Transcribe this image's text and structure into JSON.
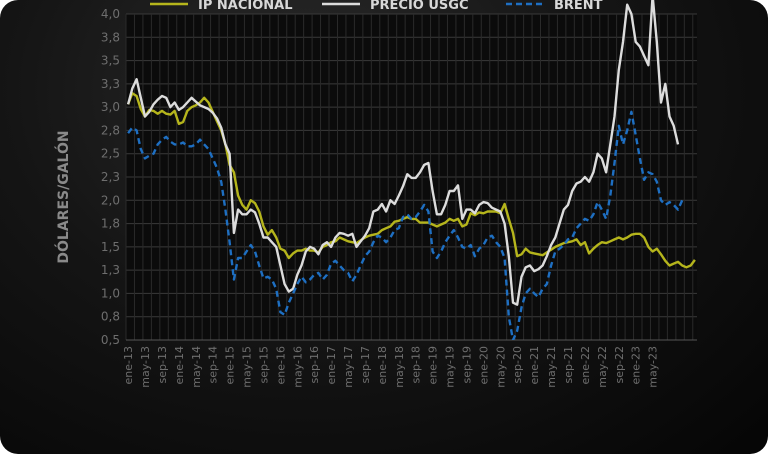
{
  "chart_data": {
    "type": "line",
    "ylabel": "DÓLARES/GALÓN",
    "xlabel": "",
    "ylim": [
      0.5,
      4.0
    ],
    "y_ticks": [
      "0,5",
      "0,8",
      "1,0",
      "1,3",
      "1,5",
      "1,8",
      "2,0",
      "2,3",
      "2,5",
      "2,8",
      "3,0",
      "3,3",
      "3,5",
      "3,8",
      "4,0"
    ],
    "x_ticks": [
      "ene-13",
      "may-13",
      "sep-13",
      "ene-14",
      "may-14",
      "sep-14",
      "ene-15",
      "may-15",
      "sep-15",
      "ene-16",
      "may-16",
      "sep-16",
      "ene-17",
      "may-17",
      "sep-17",
      "ene-18",
      "may-18",
      "sep-18",
      "ene-19",
      "may-19",
      "sep-19",
      "ene-20",
      "may-20",
      "sep-20",
      "ene-21",
      "may-21",
      "sep-21",
      "ene-22",
      "may-22",
      "sep-22",
      "ene-23",
      "may-23"
    ],
    "grid": true,
    "legend_position": "top",
    "series": [
      {
        "name": "IP NACIONAL",
        "color": "#b5b51c",
        "style": "solid",
        "values": [
          3.03,
          3.15,
          3.12,
          2.98,
          2.9,
          2.97,
          2.96,
          2.93,
          2.96,
          2.93,
          2.92,
          2.96,
          2.82,
          2.84,
          2.96,
          3.0,
          3.02,
          3.05,
          3.1,
          3.05,
          2.95,
          2.85,
          2.75,
          2.6,
          2.38,
          2.3,
          2.05,
          1.95,
          1.9,
          2.0,
          1.97,
          1.88,
          1.72,
          1.63,
          1.68,
          1.6,
          1.48,
          1.46,
          1.38,
          1.43,
          1.46,
          1.46,
          1.48,
          1.46,
          1.46,
          1.44,
          1.5,
          1.52,
          1.55,
          1.56,
          1.6,
          1.58,
          1.56,
          1.55,
          1.54,
          1.57,
          1.6,
          1.62,
          1.63,
          1.64,
          1.68,
          1.7,
          1.72,
          1.77,
          1.78,
          1.8,
          1.82,
          1.8,
          1.8,
          1.76,
          1.76,
          1.76,
          1.74,
          1.72,
          1.74,
          1.76,
          1.8,
          1.78,
          1.8,
          1.72,
          1.74,
          1.86,
          1.84,
          1.87,
          1.86,
          1.88,
          1.88,
          1.88,
          1.86,
          1.96,
          1.8,
          1.65,
          1.4,
          1.42,
          1.48,
          1.44,
          1.43,
          1.42,
          1.41,
          1.44,
          1.47,
          1.5,
          1.52,
          1.54,
          1.55,
          1.56,
          1.58,
          1.52,
          1.55,
          1.43,
          1.48,
          1.52,
          1.55,
          1.54,
          1.56,
          1.58,
          1.6,
          1.58,
          1.6,
          1.63,
          1.64,
          1.64,
          1.6,
          1.5,
          1.45,
          1.48,
          1.42,
          1.35,
          1.3,
          1.32,
          1.34,
          1.3,
          1.28,
          1.3,
          1.36
        ]
      },
      {
        "name": "PRECIO USGC",
        "color": "#dcdcdc",
        "style": "solid",
        "values": [
          3.03,
          3.2,
          3.3,
          3.1,
          2.9,
          2.95,
          3.03,
          3.08,
          3.12,
          3.1,
          3.0,
          3.05,
          2.97,
          3.0,
          3.05,
          3.1,
          3.06,
          3.02,
          3.0,
          2.98,
          2.94,
          2.88,
          2.78,
          2.6,
          2.5,
          1.65,
          1.9,
          1.85,
          1.85,
          1.9,
          1.87,
          1.75,
          1.6,
          1.6,
          1.55,
          1.5,
          1.3,
          1.1,
          1.02,
          1.05,
          1.2,
          1.3,
          1.45,
          1.5,
          1.48,
          1.42,
          1.52,
          1.55,
          1.5,
          1.6,
          1.65,
          1.64,
          1.62,
          1.64,
          1.5,
          1.56,
          1.62,
          1.7,
          1.88,
          1.9,
          1.96,
          1.88,
          2.0,
          1.96,
          2.05,
          2.15,
          2.28,
          2.24,
          2.24,
          2.3,
          2.38,
          2.4,
          2.1,
          1.85,
          1.85,
          1.95,
          2.1,
          2.1,
          2.16,
          1.8,
          1.9,
          1.9,
          1.86,
          1.95,
          1.98,
          1.97,
          1.92,
          1.9,
          1.88,
          1.75,
          1.4,
          0.9,
          0.88,
          1.18,
          1.28,
          1.3,
          1.24,
          1.26,
          1.3,
          1.4,
          1.52,
          1.6,
          1.75,
          1.9,
          1.95,
          2.1,
          2.18,
          2.2,
          2.25,
          2.2,
          2.3,
          2.5,
          2.45,
          2.3,
          2.6,
          2.9,
          3.4,
          3.7,
          4.1,
          4.0,
          3.7,
          3.65,
          3.55,
          3.45,
          4.2,
          3.7,
          3.05,
          3.25,
          2.9,
          2.8,
          2.6
        ]
      },
      {
        "name": "BRENT",
        "color": "#1e6fc2",
        "style": "dashed",
        "values": [
          2.72,
          2.78,
          2.75,
          2.55,
          2.45,
          2.48,
          2.5,
          2.6,
          2.65,
          2.68,
          2.63,
          2.6,
          2.6,
          2.62,
          2.58,
          2.58,
          2.6,
          2.65,
          2.6,
          2.55,
          2.45,
          2.35,
          2.2,
          1.9,
          1.55,
          1.15,
          1.38,
          1.38,
          1.45,
          1.52,
          1.45,
          1.3,
          1.16,
          1.18,
          1.15,
          1.05,
          0.8,
          0.77,
          0.9,
          1.0,
          1.1,
          1.18,
          1.12,
          1.15,
          1.2,
          1.22,
          1.15,
          1.2,
          1.32,
          1.35,
          1.3,
          1.25,
          1.22,
          1.13,
          1.2,
          1.3,
          1.4,
          1.45,
          1.55,
          1.62,
          1.6,
          1.55,
          1.6,
          1.68,
          1.7,
          1.82,
          1.85,
          1.8,
          1.82,
          1.88,
          1.95,
          1.88,
          1.45,
          1.38,
          1.45,
          1.55,
          1.62,
          1.68,
          1.6,
          1.5,
          1.48,
          1.52,
          1.4,
          1.48,
          1.52,
          1.6,
          1.62,
          1.55,
          1.5,
          1.38,
          0.75,
          0.5,
          0.6,
          0.85,
          1.0,
          1.05,
          1.0,
          0.96,
          1.05,
          1.1,
          1.3,
          1.45,
          1.48,
          1.52,
          1.58,
          1.6,
          1.7,
          1.75,
          1.8,
          1.78,
          1.85,
          1.98,
          1.9,
          1.8,
          2.05,
          2.4,
          2.8,
          2.6,
          2.75,
          2.95,
          2.7,
          2.45,
          2.22,
          2.3,
          2.28,
          2.2,
          2.0,
          1.95,
          1.98,
          1.95,
          1.9,
          2.0
        ]
      }
    ]
  }
}
